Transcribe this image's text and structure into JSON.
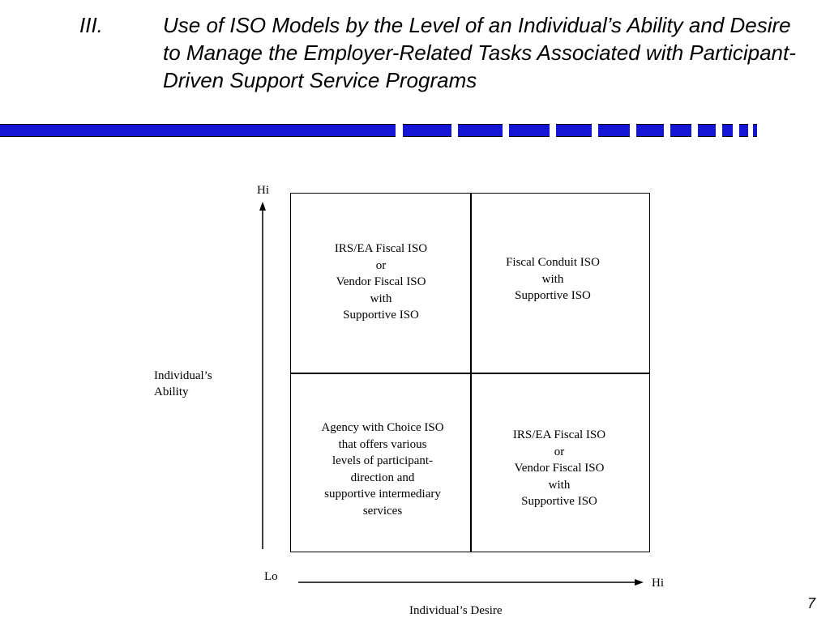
{
  "slide": {
    "numeral": "III.",
    "title": "Use of ISO Models by the Level of an Individual’s Ability and Desire to Manage the Employer-Related Tasks Associated with Participant-Driven Support Service Programs",
    "page_number": "7",
    "accent_color": "#1515d6"
  },
  "matrix": {
    "y_axis": {
      "label": "Individual’s\nAbility",
      "high": "Hi",
      "low": "Lo"
    },
    "x_axis": {
      "label": "Individual’s Desire",
      "high": "Hi"
    },
    "quadrants": {
      "top_left": "IRS/EA Fiscal ISO\nor\nVendor Fiscal ISO\nwith\nSupportive ISO",
      "top_right": "Fiscal Conduit ISO\nwith\nSupportive ISO",
      "bottom_left": "Agency with Choice ISO\nthat offers various\nlevels of participant-\ndirection and\nsupportive intermediary\nservices",
      "bottom_right": "IRS/EA Fiscal ISO\nor\nVendor Fiscal ISO\nwith\nSupportive ISO"
    }
  }
}
